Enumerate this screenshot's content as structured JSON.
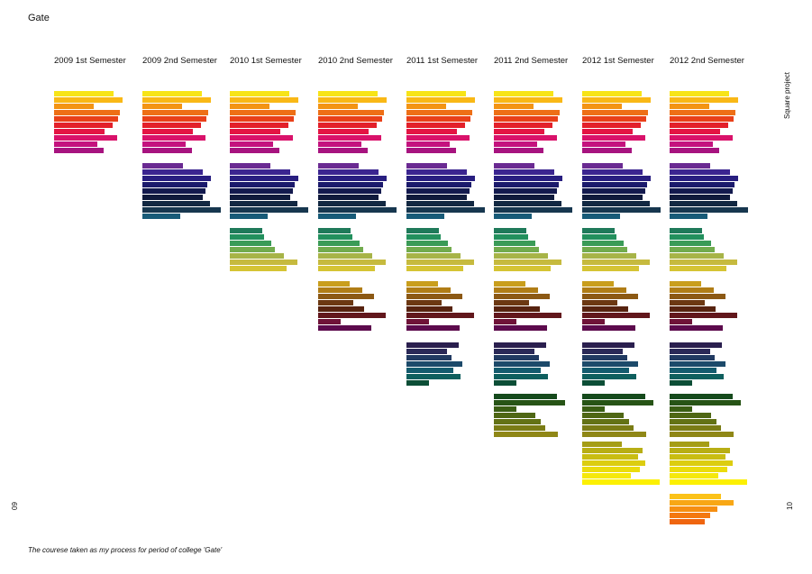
{
  "title": "Gate",
  "side_label": "Square project",
  "page_left": "09",
  "page_right": "10",
  "caption": "The courese taken as my process for period of college 'Gate'",
  "chart_data": {
    "type": "bar",
    "orientation": "horizontal",
    "columns": [
      "2009 1st Semester",
      "2009 2nd Semester",
      "2010 1st Semester",
      "2010 2nd Semester",
      "2011 1st Semester",
      "2011 2nd Semester",
      "2012 1st Semester",
      "2012 2nd Semester"
    ],
    "groups": [
      {
        "values": [
          66,
          76,
          44,
          73,
          71,
          65,
          56,
          70,
          48,
          55
        ],
        "colors": [
          "#f7e418",
          "#f9b816",
          "#f39414",
          "#ee6f16",
          "#e94019",
          "#e3202a",
          "#e41443",
          "#d9126a",
          "#c4127e",
          "#a7137f"
        ],
        "start_col": 0
      },
      {
        "values": [
          45,
          67,
          76,
          72,
          70,
          67,
          75,
          87,
          42
        ],
        "colors": [
          "#6a2a92",
          "#3b2590",
          "#281e80",
          "#1b1a6c",
          "#131a4e",
          "#0f1a3c",
          "#122842",
          "#17374f",
          "#185b78"
        ],
        "start_col": 1
      },
      {
        "values": [
          36,
          38,
          46,
          50,
          60,
          75,
          63
        ],
        "colors": [
          "#1f7a5a",
          "#22905d",
          "#3a9b57",
          "#72ab4d",
          "#a7b447",
          "#c6ba3e",
          "#d5c434"
        ],
        "start_col": 2
      },
      {
        "values": [
          35,
          49,
          62,
          39,
          51,
          75,
          25,
          59
        ],
        "colors": [
          "#c99e1c",
          "#b07d16",
          "#8c5914",
          "#6c3812",
          "#572310",
          "#62171c",
          "#6f1238",
          "#5d0b4d"
        ],
        "start_col": 3
      },
      {
        "values": [
          58,
          45,
          50,
          62,
          52,
          60,
          25
        ],
        "colors": [
          "#2a1f4e",
          "#2a2957",
          "#213a61",
          "#1c4a6a",
          "#145b6e",
          "#0e5f5e",
          "#0c4e36"
        ],
        "start_col": 4
      },
      {
        "values": [
          70,
          79,
          25,
          46,
          52,
          57,
          71
        ],
        "colors": [
          "#154a1c",
          "#275416",
          "#3a5e14",
          "#4f6714",
          "#637215",
          "#7a7c15",
          "#8f8716"
        ],
        "start_col": 5
      },
      {
        "values": [
          44,
          67,
          62,
          70,
          64,
          54,
          86
        ],
        "colors": [
          "#a59d16",
          "#b8ae14",
          "#c9bd12",
          "#dccd10",
          "#ebdc0c",
          "#f5e80c",
          "#fcf003"
        ],
        "start_col": 6
      },
      {
        "values": [
          57,
          71,
          53,
          45,
          39
        ],
        "colors": [
          "#fbc219",
          "#f8a715",
          "#f68f12",
          "#f47810",
          "#ef6510"
        ],
        "start_col": 7
      }
    ]
  }
}
